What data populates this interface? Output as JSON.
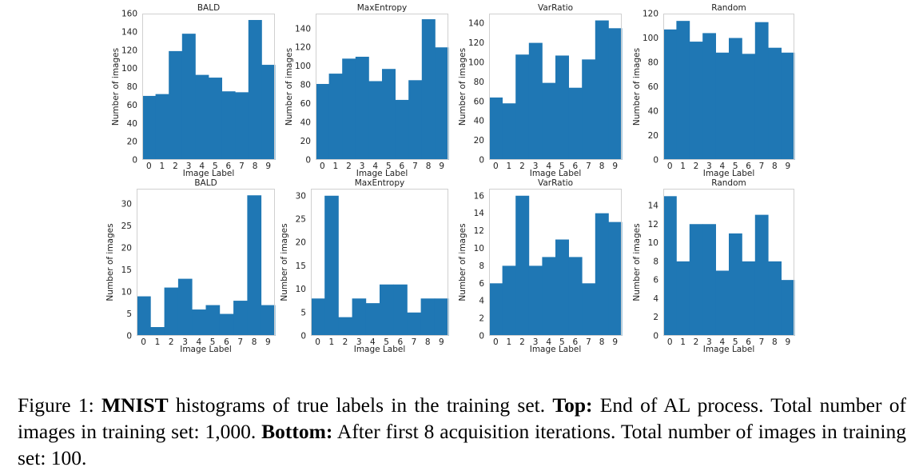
{
  "chart_data": [
    {
      "type": "bar",
      "title": "BALD",
      "xlabel": "Image Label",
      "ylabel": "Number of images",
      "categories": [
        "0",
        "1",
        "2",
        "3",
        "4",
        "5",
        "6",
        "7",
        "8",
        "9"
      ],
      "values": [
        70,
        72,
        119,
        138,
        93,
        90,
        75,
        74,
        153,
        104
      ],
      "ylim": [
        0,
        160
      ],
      "yticks": [
        0,
        20,
        40,
        60,
        80,
        100,
        120,
        140,
        160
      ],
      "color": "#1f77b4"
    },
    {
      "type": "bar",
      "title": "MaxEntropy",
      "xlabel": "Image Label",
      "ylabel": "Number of images",
      "categories": [
        "0",
        "1",
        "2",
        "3",
        "4",
        "5",
        "6",
        "7",
        "8",
        "9"
      ],
      "values": [
        81,
        92,
        108,
        110,
        84,
        97,
        64,
        85,
        150,
        120
      ],
      "ylim": [
        0,
        156
      ],
      "yticks": [
        0,
        20,
        40,
        60,
        80,
        100,
        120,
        140
      ],
      "color": "#1f77b4"
    },
    {
      "type": "bar",
      "title": "VarRatio",
      "xlabel": "Image Label",
      "ylabel": "Number of images",
      "categories": [
        "0",
        "1",
        "2",
        "3",
        "4",
        "5",
        "6",
        "7",
        "8",
        "9"
      ],
      "values": [
        64,
        58,
        108,
        120,
        79,
        107,
        74,
        103,
        143,
        135
      ],
      "ylim": [
        0,
        150
      ],
      "yticks": [
        0,
        20,
        40,
        60,
        80,
        100,
        120,
        140
      ],
      "color": "#1f77b4"
    },
    {
      "type": "bar",
      "title": "Random",
      "xlabel": "Image Label",
      "ylabel": "Number of images",
      "categories": [
        "0",
        "1",
        "2",
        "3",
        "4",
        "5",
        "6",
        "7",
        "8",
        "9"
      ],
      "values": [
        107,
        114,
        97,
        104,
        88,
        100,
        87,
        113,
        92,
        88
      ],
      "ylim": [
        0,
        120
      ],
      "yticks": [
        0,
        20,
        40,
        60,
        80,
        100,
        120
      ],
      "color": "#1f77b4"
    },
    {
      "type": "bar",
      "title": "BALD",
      "xlabel": "Image Label",
      "ylabel": "Number of images",
      "categories": [
        "0",
        "1",
        "2",
        "3",
        "4",
        "5",
        "6",
        "7",
        "8",
        "9"
      ],
      "values": [
        9,
        2,
        11,
        13,
        6,
        7,
        5,
        8,
        32,
        7
      ],
      "ylim": [
        0,
        33.5
      ],
      "yticks": [
        0,
        5,
        10,
        15,
        20,
        25,
        30
      ],
      "color": "#1f77b4"
    },
    {
      "type": "bar",
      "title": "MaxEntropy",
      "xlabel": "Image Label",
      "ylabel": "Number of images",
      "categories": [
        "0",
        "1",
        "2",
        "3",
        "4",
        "5",
        "6",
        "7",
        "8",
        "9"
      ],
      "values": [
        8,
        30,
        4,
        8,
        7,
        11,
        11,
        5,
        8,
        8
      ],
      "ylim": [
        0,
        31.5
      ],
      "yticks": [
        0,
        5,
        10,
        15,
        20,
        25,
        30
      ],
      "color": "#1f77b4"
    },
    {
      "type": "bar",
      "title": "VarRatio",
      "xlabel": "Image Label",
      "ylabel": "Number of images",
      "categories": [
        "0",
        "1",
        "2",
        "3",
        "4",
        "5",
        "6",
        "7",
        "8",
        "9"
      ],
      "values": [
        6,
        8,
        16,
        8,
        9,
        11,
        9,
        6,
        14,
        13
      ],
      "ylim": [
        0,
        16.8
      ],
      "yticks": [
        0,
        2,
        4,
        6,
        8,
        10,
        12,
        14,
        16
      ],
      "color": "#1f77b4"
    },
    {
      "type": "bar",
      "title": "Random",
      "xlabel": "Image Label",
      "ylabel": "Number of images",
      "categories": [
        "0",
        "1",
        "2",
        "3",
        "4",
        "5",
        "6",
        "7",
        "8",
        "9"
      ],
      "values": [
        15,
        8,
        12,
        12,
        7,
        11,
        8,
        13,
        8,
        6
      ],
      "ylim": [
        0,
        15.8
      ],
      "yticks": [
        0,
        2,
        4,
        6,
        8,
        10,
        12,
        14
      ],
      "color": "#1f77b4"
    }
  ],
  "caption": {
    "label": "Figure 1: ",
    "bold1": "MNIST",
    "text1": " histograms of true labels in the training set. ",
    "bold2": "Top:",
    "text2": " End of AL process. Total number of images in training set: 1,000. ",
    "bold3": "Bottom:",
    "text3": " After first 8 acquisition iterations. Total number of images in training set: 100."
  }
}
